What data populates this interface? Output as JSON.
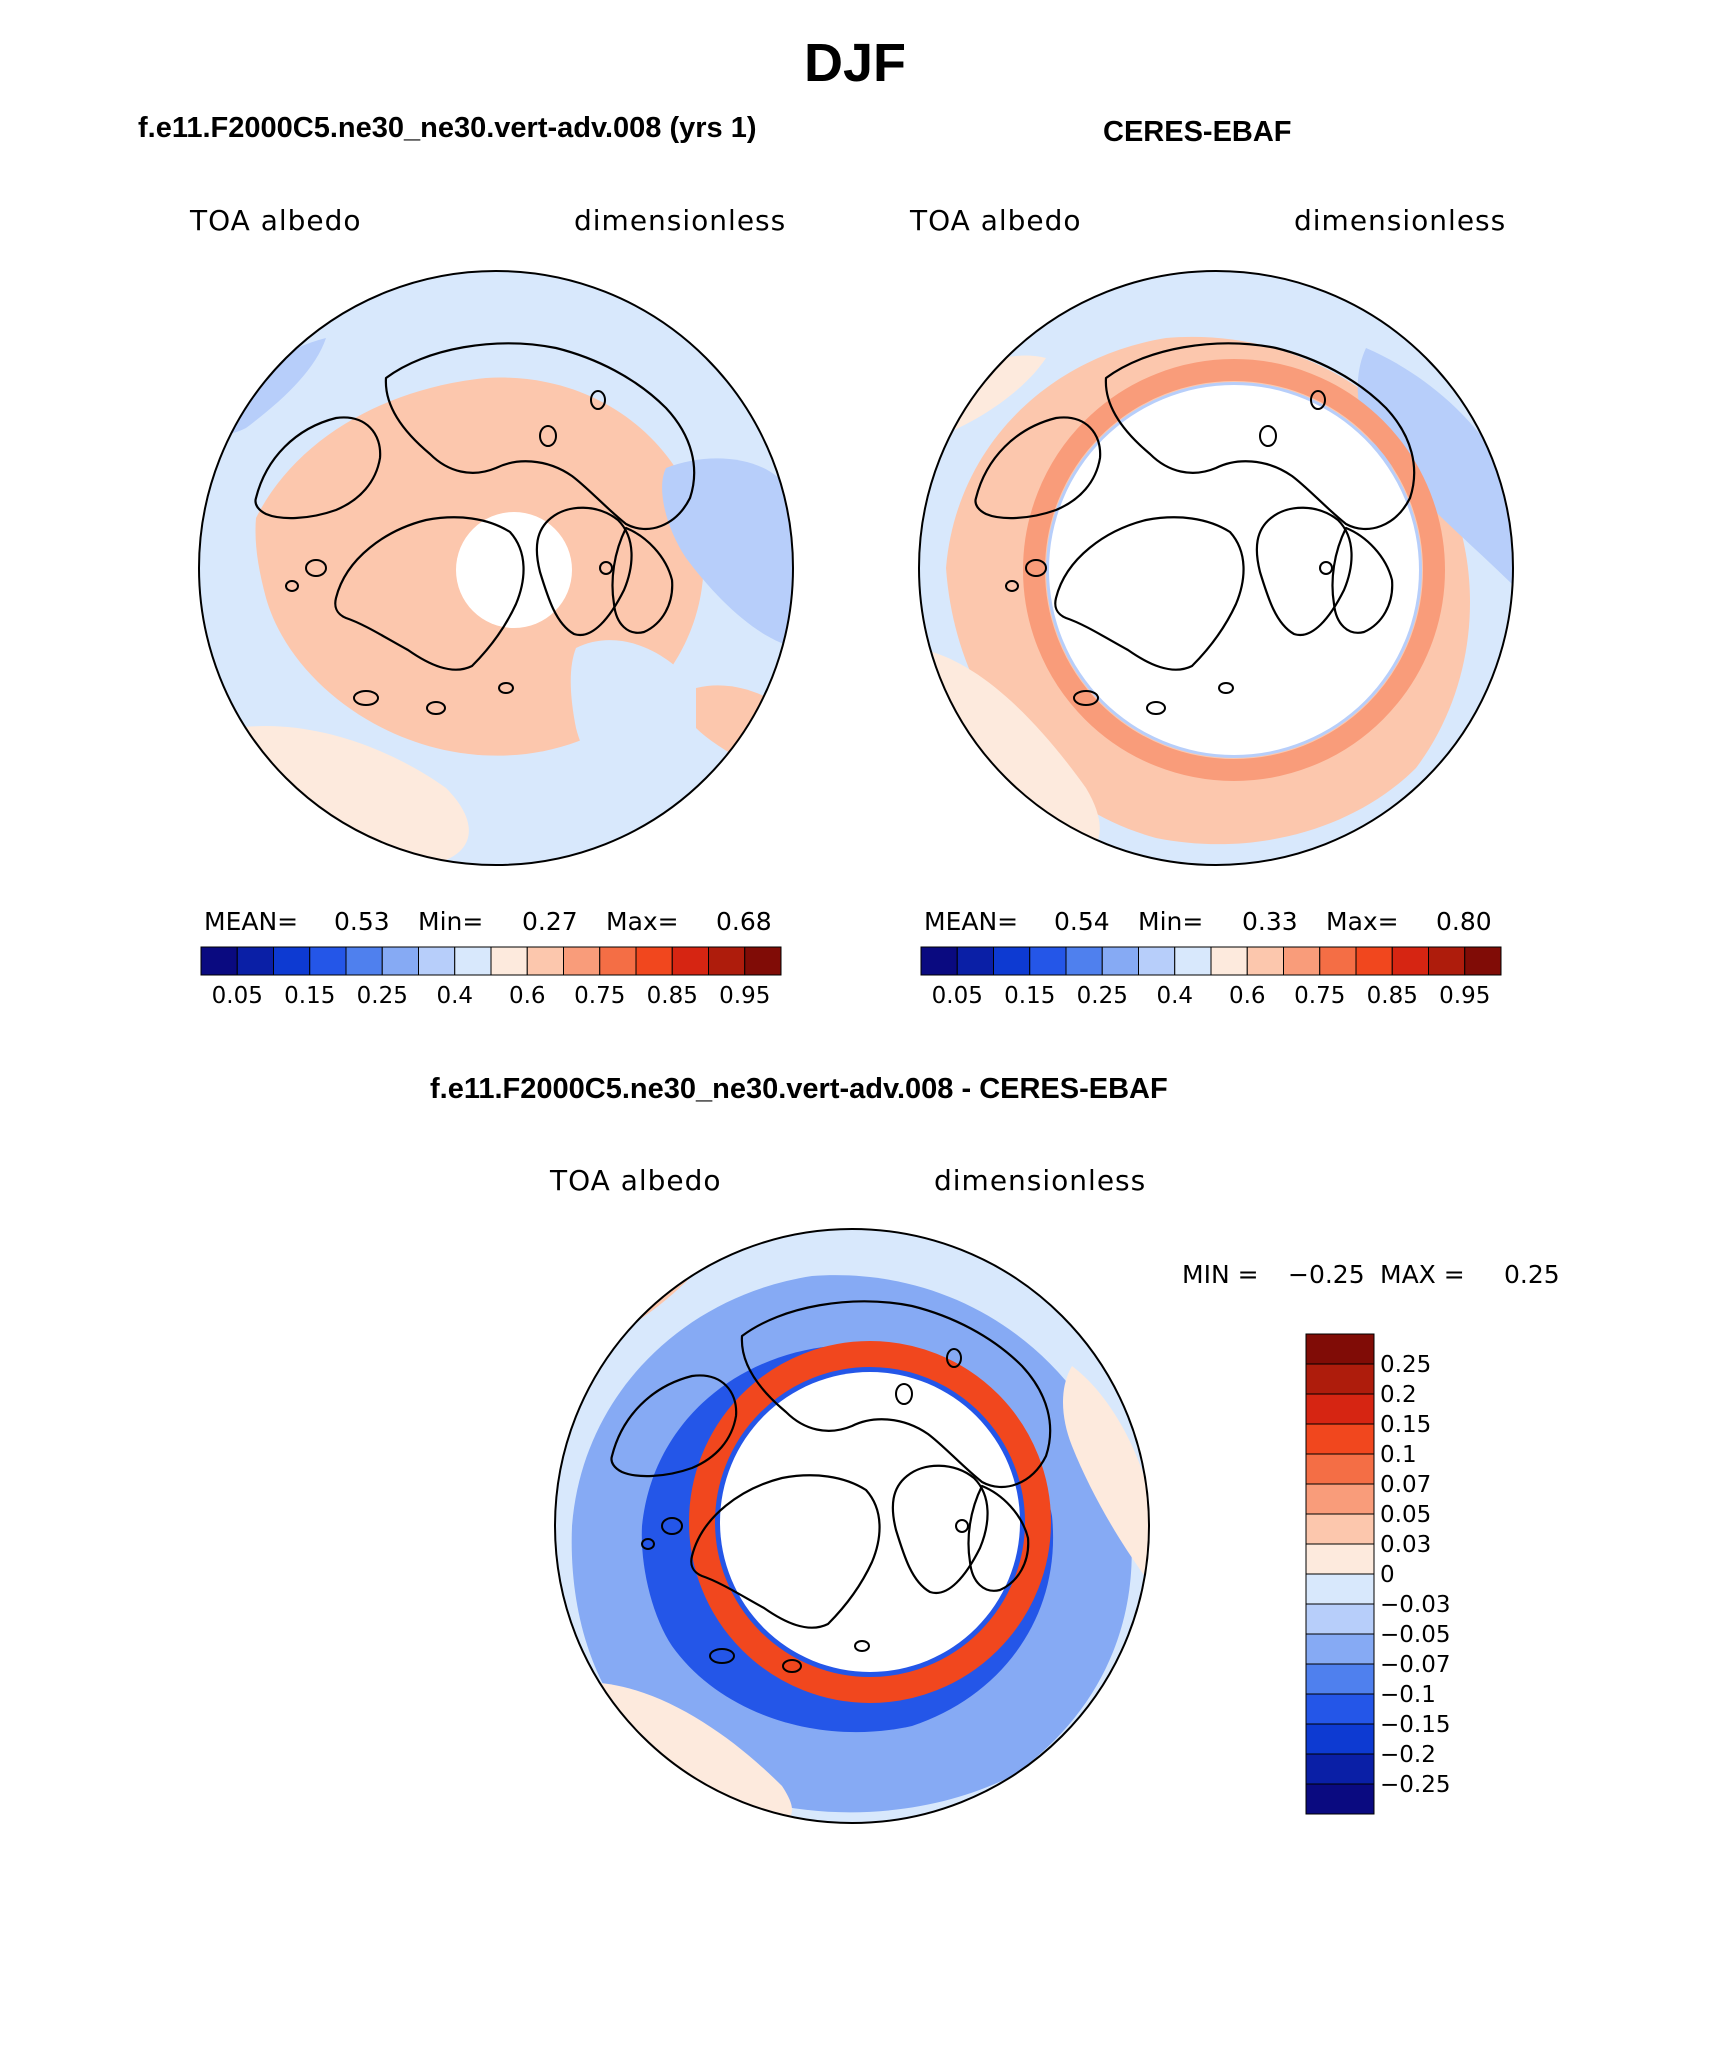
{
  "title": "DJF",
  "colors": {
    "bin_colors": [
      "#0a0a80",
      "#0a1fa6",
      "#0d3ad2",
      "#2456e8",
      "#4f80ee",
      "#86aaf4",
      "#b7cefa",
      "#d8e8fc",
      "#fdeadd",
      "#fcc7ad",
      "#f99c7a",
      "#f46e45",
      "#f1471e",
      "#d62512",
      "#ae1c0c",
      "#800c06"
    ],
    "diff_colors": [
      "#800c06",
      "#ae1c0c",
      "#d62512",
      "#f1471e",
      "#f46e45",
      "#f99c7a",
      "#fcc7ad",
      "#fdeadd",
      "#d8e8fc",
      "#b7cefa",
      "#86aaf4",
      "#4f80ee",
      "#2456e8",
      "#0d3ad2",
      "#0a1fa6",
      "#0a0a80"
    ],
    "missing": "#ffffff",
    "coast": "#000000"
  },
  "chart_data": [
    {
      "type": "heatmap",
      "projection": "north-polar-stereographic",
      "title": "f.e11.F2000C5.ne30_ne30.vert-adv.008 (yrs 1)",
      "left_label": "TOA albedo",
      "right_label": "dimensionless",
      "stats": {
        "mean_label": "MEAN=",
        "mean": "0.53",
        "min_label": "Min=",
        "min": "0.27",
        "max_label": "Max=",
        "max": "0.68"
      },
      "colorbar_ticks": [
        "0.05",
        "0.15",
        "0.25",
        "0.4",
        "0.6",
        "0.75",
        "0.85",
        "0.95"
      ],
      "missing_region": "central Arctic cap"
    },
    {
      "type": "heatmap",
      "projection": "north-polar-stereographic",
      "title": "CERES-EBAF",
      "left_label": "TOA albedo",
      "right_label": "dimensionless",
      "stats": {
        "mean_label": "MEAN=",
        "mean": "0.54",
        "min_label": "Min=",
        "min": "0.33",
        "max_label": "Max=",
        "max": "0.80"
      },
      "colorbar_ticks": [
        "0.05",
        "0.15",
        "0.25",
        "0.4",
        "0.6",
        "0.75",
        "0.85",
        "0.95"
      ],
      "missing_region": "polar night cap"
    },
    {
      "type": "heatmap",
      "projection": "north-polar-stereographic",
      "title": "f.e11.F2000C5.ne30_ne30.vert-adv.008 - CERES-EBAF",
      "left_label": "TOA albedo",
      "right_label": "dimensionless",
      "stats": {
        "min_label": "MIN =",
        "min": "−0.25",
        "max_label": "MAX =",
        "max": "0.25"
      },
      "colorbar_ticks": [
        "0.25",
        "0.2",
        "0.15",
        "0.1",
        "0.07",
        "0.05",
        "0.03",
        "0",
        "−0.03",
        "−0.05",
        "−0.07",
        "−0.1",
        "−0.15",
        "−0.2",
        "−0.25"
      ],
      "missing_region": "polar night cap"
    }
  ]
}
